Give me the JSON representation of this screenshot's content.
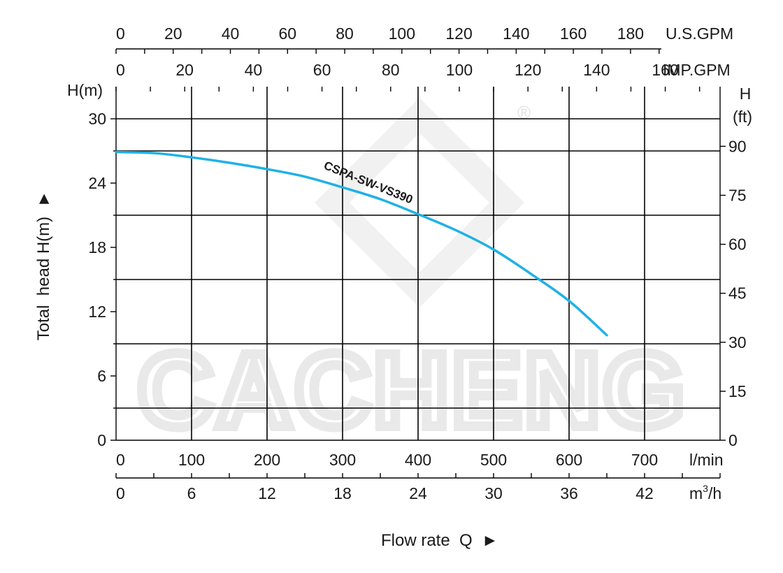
{
  "chart_data": {
    "type": "line",
    "watermark": "CACHENG",
    "watermark_mark": "®",
    "series": [
      {
        "name": "CSPA-SW-VS390",
        "color": "#1fb1e6",
        "x": [
          0,
          50,
          100,
          150,
          200,
          250,
          300,
          350,
          400,
          450,
          500,
          550,
          600,
          650
        ],
        "y": [
          26.9,
          26.8,
          26.4,
          25.9,
          25.3,
          24.6,
          23.6,
          22.5,
          21.1,
          19.6,
          17.8,
          15.5,
          13.0,
          9.8
        ]
      }
    ],
    "x_axis": {
      "title": "Flow rate  Q  ►",
      "unit": "l/min",
      "range": [
        0,
        800
      ],
      "ticks": [
        "0",
        "100",
        "200",
        "300",
        "400",
        "500",
        "600",
        "700"
      ],
      "tick_values": [
        0,
        100,
        200,
        300,
        400,
        500,
        600,
        700
      ]
    },
    "x_axis_m3h": {
      "unit_base": "m",
      "unit_sup": "3",
      "unit_tail": "/h",
      "ticks": [
        "0",
        "6",
        "12",
        "18",
        "24",
        "30",
        "36",
        "42"
      ],
      "tick_values": [
        0,
        6,
        12,
        18,
        24,
        30,
        36,
        42
      ]
    },
    "x_axis_us_gpm": {
      "unit": "U.S.GPM",
      "ticks": [
        "0",
        "20",
        "40",
        "60",
        "80",
        "100",
        "120",
        "140",
        "160",
        "180"
      ],
      "tick_values": [
        0,
        20,
        40,
        60,
        80,
        100,
        120,
        140,
        160,
        180
      ]
    },
    "x_axis_imp_gpm": {
      "unit": "IMP.GPM",
      "ticks": [
        "0",
        "20",
        "40",
        "60",
        "80",
        "100",
        "120",
        "140",
        "160"
      ],
      "tick_values": [
        0,
        20,
        40,
        60,
        80,
        100,
        120,
        140,
        160
      ]
    },
    "y_axis": {
      "title": "Total  head H(m)  ►",
      "unit": "H(m)",
      "range": [
        0,
        33
      ],
      "ticks": [
        "0",
        "6",
        "12",
        "18",
        "24",
        "30"
      ],
      "tick_values": [
        0,
        6,
        12,
        18,
        24,
        30
      ]
    },
    "y_axis_ft": {
      "unit_top": "H",
      "unit_bottom": "(ft)",
      "ticks": [
        "0",
        "15",
        "30",
        "45",
        "60",
        "75",
        "90"
      ],
      "tick_values": [
        0,
        15,
        30,
        45,
        60,
        75,
        90
      ]
    },
    "grid": true,
    "grid_h_values": [
      3,
      9,
      15,
      21,
      27,
      30
    ],
    "grid_v_values": [
      100,
      200,
      300,
      400,
      500,
      600,
      700
    ]
  }
}
